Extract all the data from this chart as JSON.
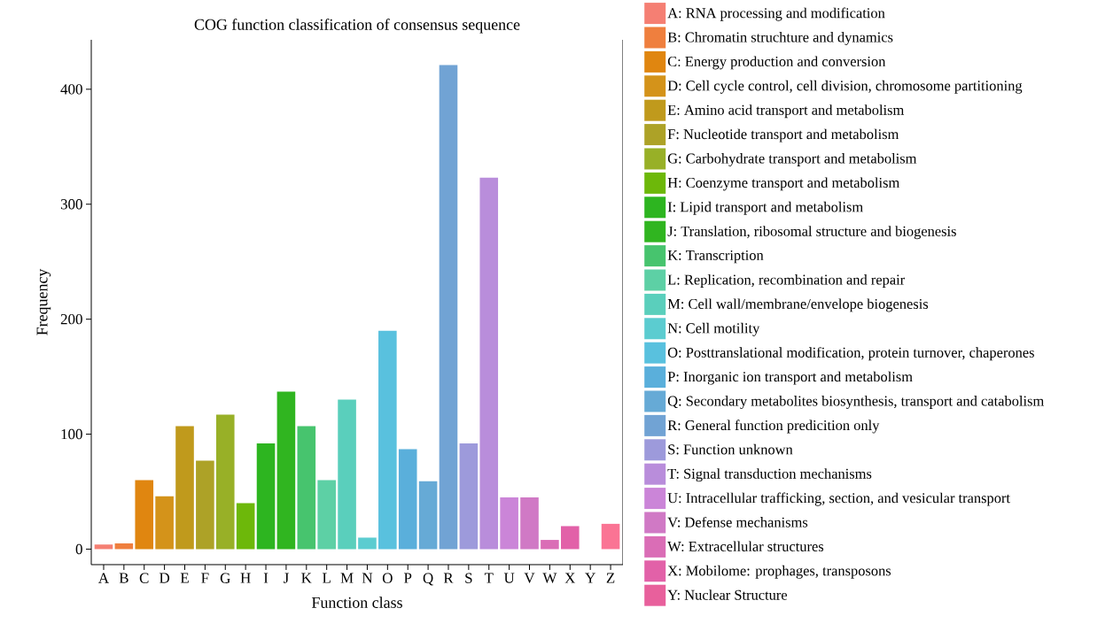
{
  "chart_data": {
    "type": "bar",
    "title": "COG function classification of consensus sequence",
    "xlabel": "Function class",
    "ylabel": "Frequency",
    "categories": [
      "A",
      "B",
      "C",
      "D",
      "E",
      "F",
      "G",
      "H",
      "I",
      "J",
      "K",
      "L",
      "M",
      "N",
      "O",
      "P",
      "Q",
      "R",
      "S",
      "T",
      "U",
      "V",
      "W",
      "X",
      "Y",
      "Z"
    ],
    "ylim": [
      -13.5,
      443
    ],
    "yticks": [
      0,
      100,
      200,
      300,
      400
    ],
    "legend": "right",
    "series": [
      {
        "name": "A: RNA processing and modification",
        "color": "#f57f73",
        "values": [
          4,
          null,
          null,
          null,
          null,
          null,
          null,
          null,
          null,
          null,
          null,
          null,
          null,
          null,
          null,
          null,
          null,
          null,
          null,
          null,
          null,
          null,
          null,
          null,
          null,
          null
        ]
      },
      {
        "name": "B: Chromatin struchture and dynamics",
        "color": "#ef7f3e",
        "values": [
          null,
          5,
          null,
          null,
          null,
          null,
          null,
          null,
          null,
          null,
          null,
          null,
          null,
          null,
          null,
          null,
          null,
          null,
          null,
          null,
          null,
          null,
          null,
          null,
          null,
          null
        ]
      },
      {
        "name": "C: Energy production and conversion",
        "color": "#e08610",
        "values": [
          null,
          null,
          60,
          null,
          null,
          null,
          null,
          null,
          null,
          null,
          null,
          null,
          null,
          null,
          null,
          null,
          null,
          null,
          null,
          null,
          null,
          null,
          null,
          null,
          null,
          null
        ]
      },
      {
        "name": "D: Cell cycle control, cell division, chromosome partitioning",
        "color": "#d4931a",
        "values": [
          null,
          null,
          null,
          46,
          null,
          null,
          null,
          null,
          null,
          null,
          null,
          null,
          null,
          null,
          null,
          null,
          null,
          null,
          null,
          null,
          null,
          null,
          null,
          null,
          null,
          null
        ]
      },
      {
        "name": "E: Amino acid transport and metabolism",
        "color": "#c09a1c",
        "values": [
          null,
          null,
          null,
          null,
          107,
          null,
          null,
          null,
          null,
          null,
          null,
          null,
          null,
          null,
          null,
          null,
          null,
          null,
          null,
          null,
          null,
          null,
          null,
          null,
          null,
          null
        ]
      },
      {
        "name": "F: Nucleotide transport and metabolism",
        "color": "#ada227",
        "values": [
          null,
          null,
          null,
          null,
          null,
          77,
          null,
          null,
          null,
          null,
          null,
          null,
          null,
          null,
          null,
          null,
          null,
          null,
          null,
          null,
          null,
          null,
          null,
          null,
          null,
          null
        ]
      },
      {
        "name": "G: Carbohydrate transport and metabolism",
        "color": "#98b027",
        "values": [
          null,
          null,
          null,
          null,
          null,
          null,
          117,
          null,
          null,
          null,
          null,
          null,
          null,
          null,
          null,
          null,
          null,
          null,
          null,
          null,
          null,
          null,
          null,
          null,
          null,
          null
        ]
      },
      {
        "name": "H: Coenzyme transport and metabolism",
        "color": "#6db80a",
        "values": [
          null,
          null,
          null,
          null,
          null,
          null,
          null,
          40,
          null,
          null,
          null,
          null,
          null,
          null,
          null,
          null,
          null,
          null,
          null,
          null,
          null,
          null,
          null,
          null,
          null,
          null
        ]
      },
      {
        "name": "I: Lipid transport and metabolism",
        "color": "#2db520",
        "values": [
          null,
          null,
          null,
          null,
          null,
          null,
          null,
          null,
          92,
          null,
          null,
          null,
          null,
          null,
          null,
          null,
          null,
          null,
          null,
          null,
          null,
          null,
          null,
          null,
          null,
          null
        ]
      },
      {
        "name": "J: Translation, ribosomal structure and biogenesis",
        "color": "#30b520",
        "values": [
          null,
          null,
          null,
          null,
          null,
          null,
          null,
          null,
          null,
          137,
          null,
          null,
          null,
          null,
          null,
          null,
          null,
          null,
          null,
          null,
          null,
          null,
          null,
          null,
          null,
          null
        ]
      },
      {
        "name": "K: Transcription",
        "color": "#47c46e",
        "values": [
          null,
          null,
          null,
          null,
          null,
          null,
          null,
          null,
          null,
          null,
          107,
          null,
          null,
          null,
          null,
          null,
          null,
          null,
          null,
          null,
          null,
          null,
          null,
          null,
          null,
          null
        ]
      },
      {
        "name": "L: Replication, recombination and repair",
        "color": "#5dd0a5",
        "values": [
          null,
          null,
          null,
          null,
          null,
          null,
          null,
          null,
          null,
          null,
          null,
          60,
          null,
          null,
          null,
          null,
          null,
          null,
          null,
          null,
          null,
          null,
          null,
          null,
          null,
          null
        ]
      },
      {
        "name": "M: Cell wall/membrane/envelope biogenesis",
        "color": "#5acfbc",
        "values": [
          null,
          null,
          null,
          null,
          null,
          null,
          null,
          null,
          null,
          null,
          null,
          null,
          130,
          null,
          null,
          null,
          null,
          null,
          null,
          null,
          null,
          null,
          null,
          null,
          null,
          null
        ]
      },
      {
        "name": "N: Cell motility",
        "color": "#5bccd0",
        "values": [
          null,
          null,
          null,
          null,
          null,
          null,
          null,
          null,
          null,
          null,
          null,
          null,
          null,
          10,
          null,
          null,
          null,
          null,
          null,
          null,
          null,
          null,
          null,
          null,
          null,
          null
        ]
      },
      {
        "name": "O: Posttranslational modification, protein turnover, chaperones",
        "color": "#59c1de",
        "values": [
          null,
          null,
          null,
          null,
          null,
          null,
          null,
          null,
          null,
          null,
          null,
          null,
          null,
          null,
          190,
          null,
          null,
          null,
          null,
          null,
          null,
          null,
          null,
          null,
          null,
          null
        ]
      },
      {
        "name": "P: Inorganic ion transport and metabolism",
        "color": "#5aafdb",
        "values": [
          null,
          null,
          null,
          null,
          null,
          null,
          null,
          null,
          null,
          null,
          null,
          null,
          null,
          null,
          null,
          87,
          null,
          null,
          null,
          null,
          null,
          null,
          null,
          null,
          null,
          null
        ]
      },
      {
        "name": "Q: Secondary metabolites biosynthesis, transport and catabolism",
        "color": "#66aad6",
        "values": [
          null,
          null,
          null,
          null,
          null,
          null,
          null,
          null,
          null,
          null,
          null,
          null,
          null,
          null,
          null,
          null,
          59,
          null,
          null,
          null,
          null,
          null,
          null,
          null,
          null,
          null
        ]
      },
      {
        "name": "R: General function predicition only",
        "color": "#71a3d4",
        "values": [
          null,
          null,
          null,
          null,
          null,
          null,
          null,
          null,
          null,
          null,
          null,
          null,
          null,
          null,
          null,
          null,
          null,
          421,
          null,
          null,
          null,
          null,
          null,
          null,
          null,
          null
        ]
      },
      {
        "name": "S: Function unknown",
        "color": "#9d9adb",
        "values": [
          null,
          null,
          null,
          null,
          null,
          null,
          null,
          null,
          null,
          null,
          null,
          null,
          null,
          null,
          null,
          null,
          null,
          null,
          92,
          null,
          null,
          null,
          null,
          null,
          null,
          null
        ]
      },
      {
        "name": "T: Signal transduction mechanisms",
        "color": "#b98ddb",
        "values": [
          null,
          null,
          null,
          null,
          null,
          null,
          null,
          null,
          null,
          null,
          null,
          null,
          null,
          null,
          null,
          null,
          null,
          null,
          null,
          323,
          null,
          null,
          null,
          null,
          null,
          null
        ]
      },
      {
        "name": "U: Intracellular trafficking, section, and vesicular transport",
        "color": "#cb85d8",
        "values": [
          null,
          null,
          null,
          null,
          null,
          null,
          null,
          null,
          null,
          null,
          null,
          null,
          null,
          null,
          null,
          null,
          null,
          null,
          null,
          null,
          45,
          null,
          null,
          null,
          null,
          null
        ]
      },
      {
        "name": "V: Defense mechanisms",
        "color": "#d079c5",
        "values": [
          null,
          null,
          null,
          null,
          null,
          null,
          null,
          null,
          null,
          null,
          null,
          null,
          null,
          null,
          null,
          null,
          null,
          null,
          null,
          null,
          null,
          45,
          null,
          null,
          null,
          null
        ]
      },
      {
        "name": "W: Extracellular structures",
        "color": "#da6db6",
        "values": [
          null,
          null,
          null,
          null,
          null,
          null,
          null,
          null,
          null,
          null,
          null,
          null,
          null,
          null,
          null,
          null,
          null,
          null,
          null,
          null,
          null,
          null,
          8,
          null,
          null,
          null
        ]
      },
      {
        "name": "X: Mobilome: prophages, transposons",
        "color": "#e261a8",
        "values": [
          null,
          null,
          null,
          null,
          null,
          null,
          null,
          null,
          null,
          null,
          null,
          null,
          null,
          null,
          null,
          null,
          null,
          null,
          null,
          null,
          null,
          null,
          null,
          20,
          null,
          null
        ]
      },
      {
        "name": "Y: Nuclear Structure",
        "color": "#e8609c",
        "values": [
          null,
          null,
          null,
          null,
          null,
          null,
          null,
          null,
          null,
          null,
          null,
          null,
          null,
          null,
          null,
          null,
          null,
          null,
          null,
          null,
          null,
          null,
          null,
          null,
          0,
          null
        ]
      },
      {
        "color": "#fa7494",
        "values": [
          null,
          null,
          null,
          null,
          null,
          null,
          null,
          null,
          null,
          null,
          null,
          null,
          null,
          null,
          null,
          null,
          null,
          null,
          null,
          null,
          null,
          null,
          null,
          null,
          null,
          22
        ]
      }
    ]
  }
}
